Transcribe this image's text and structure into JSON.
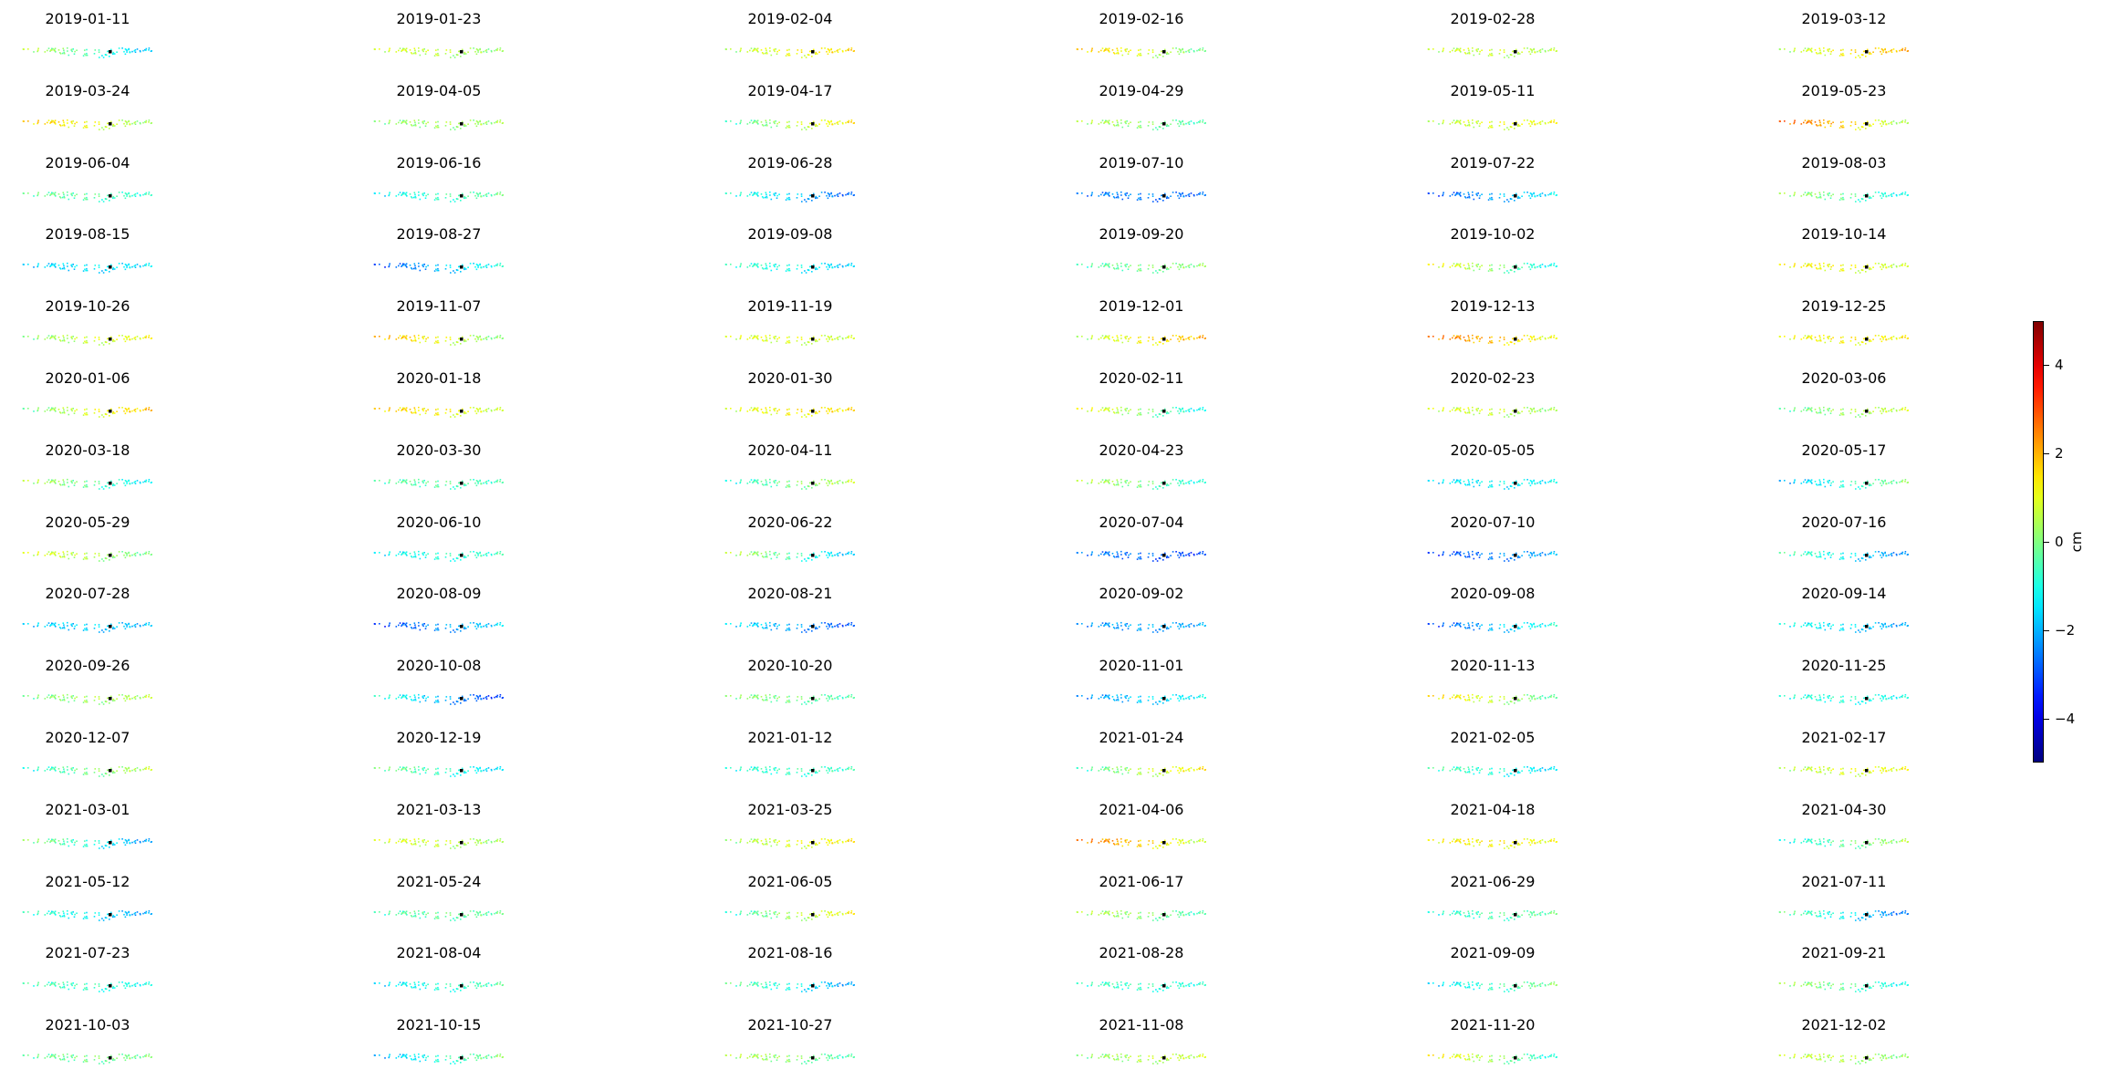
{
  "chart_data": {
    "type": "scatter",
    "description_kind": "small-multiples",
    "layout": {
      "rows": 15,
      "columns": 6
    },
    "panel_titles": [
      "2019-01-11",
      "2019-01-23",
      "2019-02-04",
      "2019-02-16",
      "2019-02-28",
      "2019-03-12",
      "2019-03-24",
      "2019-04-05",
      "2019-04-17",
      "2019-04-29",
      "2019-05-11",
      "2019-05-23",
      "2019-06-04",
      "2019-06-16",
      "2019-06-28",
      "2019-07-10",
      "2019-07-22",
      "2019-08-03",
      "2019-08-15",
      "2019-08-27",
      "2019-09-08",
      "2019-09-20",
      "2019-10-02",
      "2019-10-14",
      "2019-10-26",
      "2019-11-07",
      "2019-11-19",
      "2019-12-01",
      "2019-12-13",
      "2019-12-25",
      "2020-01-06",
      "2020-01-18",
      "2020-01-30",
      "2020-02-11",
      "2020-02-23",
      "2020-03-06",
      "2020-03-18",
      "2020-03-30",
      "2020-04-11",
      "2020-04-23",
      "2020-05-05",
      "2020-05-17",
      "2020-05-29",
      "2020-06-10",
      "2020-06-22",
      "2020-07-04",
      "2020-07-10",
      "2020-07-16",
      "2020-07-28",
      "2020-08-09",
      "2020-08-21",
      "2020-09-02",
      "2020-09-08",
      "2020-09-14",
      "2020-09-26",
      "2020-10-08",
      "2020-10-20",
      "2020-11-01",
      "2020-11-13",
      "2020-11-25",
      "2020-12-07",
      "2020-12-19",
      "2021-01-12",
      "2021-01-24",
      "2021-02-05",
      "2021-02-17",
      "2021-03-01",
      "2021-03-13",
      "2021-03-25",
      "2021-04-06",
      "2021-04-18",
      "2021-04-30",
      "2021-05-12",
      "2021-05-24",
      "2021-06-05",
      "2021-06-17",
      "2021-06-29",
      "2021-07-11",
      "2021-07-23",
      "2021-08-04",
      "2021-08-16",
      "2021-08-28",
      "2021-09-09",
      "2021-09-21",
      "2021-10-03",
      "2021-10-15",
      "2021-10-27",
      "2021-11-08",
      "2021-11-20",
      "2021-12-02"
    ],
    "panel_mean_values_cm": [
      -0.6,
      0.5,
      1.0,
      0.8,
      0.6,
      1.2,
      1.0,
      0.2,
      0.4,
      0.0,
      0.8,
      1.6,
      -0.5,
      -0.8,
      -1.8,
      -2.6,
      -2.2,
      -0.4,
      -1.6,
      -2.0,
      -1.2,
      -0.2,
      0.0,
      1.0,
      0.6,
      1.0,
      0.8,
      1.2,
      1.8,
      1.2,
      0.8,
      1.2,
      1.2,
      0.0,
      0.6,
      0.2,
      -0.4,
      -0.5,
      -0.2,
      -0.2,
      -1.4,
      -1.0,
      0.4,
      -1.0,
      -0.6,
      -2.8,
      -2.6,
      -1.4,
      -1.8,
      -2.4,
      -2.2,
      -2.2,
      -2.0,
      -1.6,
      0.2,
      -2.0,
      -0.2,
      -1.8,
      0.6,
      -1.0,
      -0.2,
      -0.8,
      -0.8,
      0.4,
      -1.0,
      0.8,
      -1.0,
      0.6,
      0.8,
      1.6,
      1.2,
      -0.4,
      -1.4,
      -0.4,
      0.2,
      0.0,
      -0.6,
      -1.4,
      -0.8,
      -1.0,
      -1.2,
      -0.8,
      -0.8,
      -0.4,
      -0.2,
      -1.0,
      0.0,
      0.4,
      0.2,
      0.4
    ],
    "colorbar": {
      "colormap": "jet",
      "range": [
        -5,
        5
      ],
      "ticks": [
        -4,
        -2,
        0,
        2,
        4
      ],
      "tick_labels": [
        "−4",
        "−2",
        "0",
        "2",
        "4"
      ],
      "label": "cm"
    },
    "axes_visible": false,
    "grid": false,
    "reference_point_color": "#000000"
  }
}
